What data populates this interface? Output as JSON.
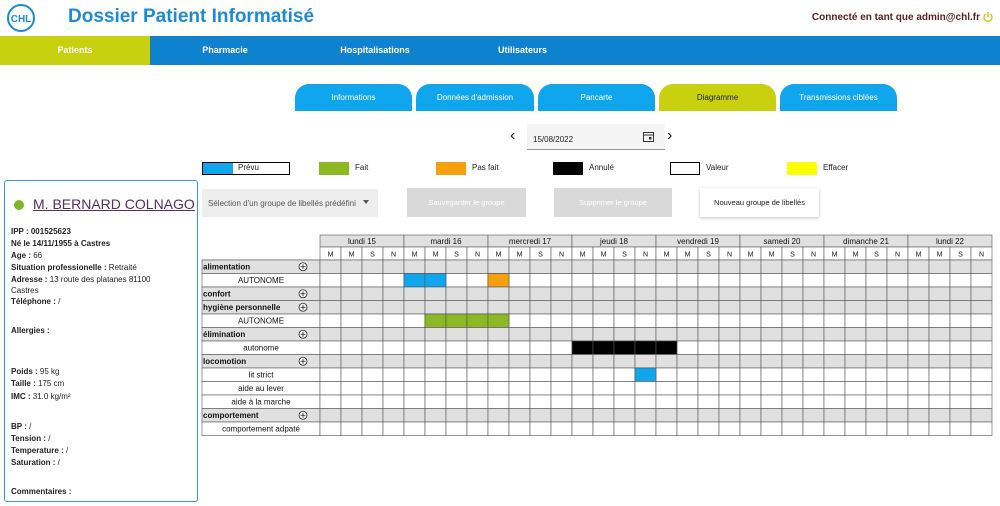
{
  "header": {
    "logo_text": "CHL",
    "title": "Dossier Patient Informatisé",
    "user": "Connecté en tant que admin@chl.fr"
  },
  "nav": [
    "Patients",
    "Pharmacie",
    "Hospitalisations",
    "Utilisateurs"
  ],
  "tabs": [
    "Informations",
    "Données d'admission",
    "Pancarte",
    "Diagramme",
    "Transmissions ciblées"
  ],
  "active_tab": "Diagramme",
  "date": "15/08/2022",
  "legend": [
    {
      "label": "Prévu",
      "color": "#10a6ee"
    },
    {
      "label": "Fait",
      "color": "#8bb823"
    },
    {
      "label": "Pas fait",
      "color": "#f5a00f"
    },
    {
      "label": "Annulé",
      "color": "#000000"
    },
    {
      "label": "Valeur",
      "color": "#ffffff"
    },
    {
      "label": "Effacer",
      "color": "#ffff00"
    }
  ],
  "group_select": "Sélection d'un groupe de libellés prédéfini",
  "buttons": {
    "save": "Sauvegarder le groupe",
    "delete": "Supprimer le groupe",
    "new": "Nouveau groupe de libellés"
  },
  "patient": {
    "name": "M. BERNARD COLNAGO",
    "ipp_label": "IPP : ",
    "ipp": "001525623",
    "birth": "Né le 14/11/1955 à Castres",
    "age_label": "Age : ",
    "age": "66",
    "job_label": "Situation professionelle : ",
    "job": "Retraité",
    "address_label": "Adresse : ",
    "address1": "13 route des platanes 81100",
    "address2": "Castres",
    "phone_label": "Téléphone : ",
    "phone": "/",
    "allergies_label": "Allergies :",
    "allergies": "",
    "weight_label": "Poids : ",
    "weight": "95 kg",
    "height_label": "Taille : ",
    "height": "175 cm",
    "bmi_label": "IMC : ",
    "bmi": "31.0 kg/m²",
    "bp_label": "BP : ",
    "bp": "/",
    "tension_label": "Tension : ",
    "tension": "/",
    "temp_label": "Temperature : ",
    "temp": "/",
    "sat_label": "Saturation : ",
    "sat": "/",
    "comments_label": "Commentaires :",
    "comments": ""
  },
  "grid": {
    "days": [
      "lundi 15",
      "mardi 16",
      "mercredi 17",
      "jeudi 18",
      "vendredi 19",
      "samedi 20",
      "dimanche 21",
      "lundi 22"
    ],
    "slots": [
      "M",
      "M",
      "S",
      "N"
    ],
    "rows": [
      {
        "label": "alimentation",
        "type": "group",
        "add_icon": true
      },
      {
        "label": "AUTONOME",
        "type": "item",
        "marks": [
          {
            "day": 1,
            "slot": 0,
            "status": "Prévu"
          },
          {
            "day": 1,
            "slot": 1,
            "status": "Prévu"
          },
          {
            "day": 2,
            "slot": 0,
            "status": "Pas fait"
          }
        ]
      },
      {
        "label": "confort",
        "type": "group",
        "add_icon": true
      },
      {
        "label": "hygiène personnelle",
        "type": "group",
        "add_icon": true
      },
      {
        "label": "AUTONOME",
        "type": "item",
        "marks": [
          {
            "day": 1,
            "slot": 1,
            "status": "Fait"
          },
          {
            "day": 1,
            "slot": 2,
            "status": "Fait"
          },
          {
            "day": 1,
            "slot": 3,
            "status": "Fait"
          },
          {
            "day": 2,
            "slot": 0,
            "status": "Fait"
          }
        ]
      },
      {
        "label": "élimination",
        "type": "group",
        "add_icon": true
      },
      {
        "label": "autonome",
        "type": "item",
        "marks": [
          {
            "day": 3,
            "slot": 0,
            "status": "Annulé"
          },
          {
            "day": 3,
            "slot": 1,
            "status": "Annulé"
          },
          {
            "day": 3,
            "slot": 2,
            "status": "Annulé"
          },
          {
            "day": 3,
            "slot": 3,
            "status": "Annulé"
          },
          {
            "day": 4,
            "slot": 0,
            "status": "Annulé"
          }
        ]
      },
      {
        "label": "locomotion",
        "type": "group",
        "add_icon": true
      },
      {
        "label": "lit strict",
        "type": "item",
        "marks": [
          {
            "day": 3,
            "slot": 3,
            "status": "Prévu"
          }
        ]
      },
      {
        "label": "aide au lever",
        "type": "item",
        "marks": []
      },
      {
        "label": "aide à la marche",
        "type": "item",
        "marks": []
      },
      {
        "label": "comportement",
        "type": "group",
        "add_icon": true
      },
      {
        "label": "comportement adpaté",
        "type": "item",
        "marks": []
      }
    ]
  }
}
